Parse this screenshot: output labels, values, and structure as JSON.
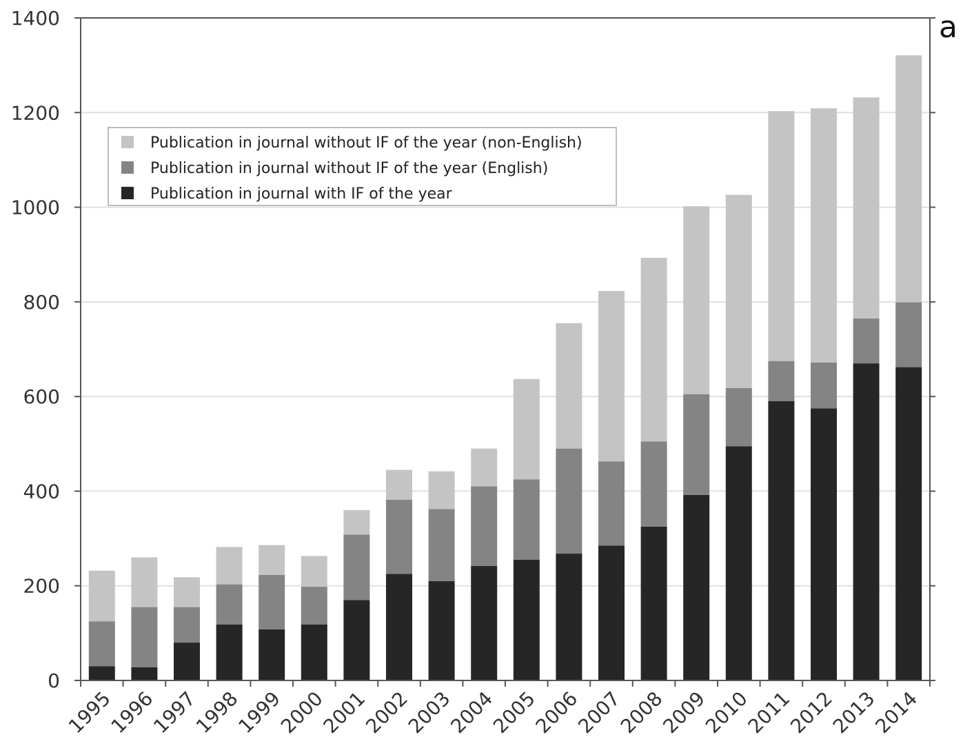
{
  "panel_label": "a",
  "colors": {
    "non_english": "#c4c4c4",
    "english": "#848484",
    "with_if": "#262626",
    "grid": "#e0e0e0",
    "axis": "#555555",
    "legend_border": "#bdbdbd"
  },
  "chart_data": {
    "type": "bar",
    "stacked": true,
    "title": "",
    "xlabel": "",
    "ylabel": "",
    "ylim": [
      0,
      1400
    ],
    "yticks": [
      0,
      200,
      400,
      600,
      800,
      1000,
      1200,
      1400
    ],
    "grid": true,
    "legend_position": "top-left",
    "categories": [
      "1995",
      "1996",
      "1997",
      "1998",
      "1999",
      "2000",
      "2001",
      "2002",
      "2003",
      "2004",
      "2005",
      "2006",
      "2007",
      "2008",
      "2009",
      "2010",
      "2011",
      "2012",
      "2013",
      "2014"
    ],
    "series": [
      {
        "name": "Publication in journal with IF of the year",
        "color": "#262626",
        "values": [
          30,
          28,
          80,
          118,
          108,
          118,
          170,
          225,
          210,
          242,
          255,
          268,
          285,
          325,
          392,
          495,
          590,
          575,
          670,
          662
        ]
      },
      {
        "name": "Publication in journal without IF of the year (English)",
        "color": "#848484",
        "values": [
          95,
          127,
          75,
          85,
          115,
          80,
          138,
          157,
          152,
          168,
          170,
          222,
          178,
          180,
          213,
          123,
          85,
          97,
          95,
          137
        ]
      },
      {
        "name": "Publication in journal without IF of the year (non-English)",
        "color": "#c4c4c4",
        "values": [
          107,
          105,
          63,
          79,
          63,
          65,
          52,
          63,
          80,
          80,
          212,
          265,
          360,
          388,
          397,
          408,
          528,
          537,
          467,
          522
        ]
      }
    ],
    "legend_order": [
      2,
      1,
      0
    ]
  }
}
